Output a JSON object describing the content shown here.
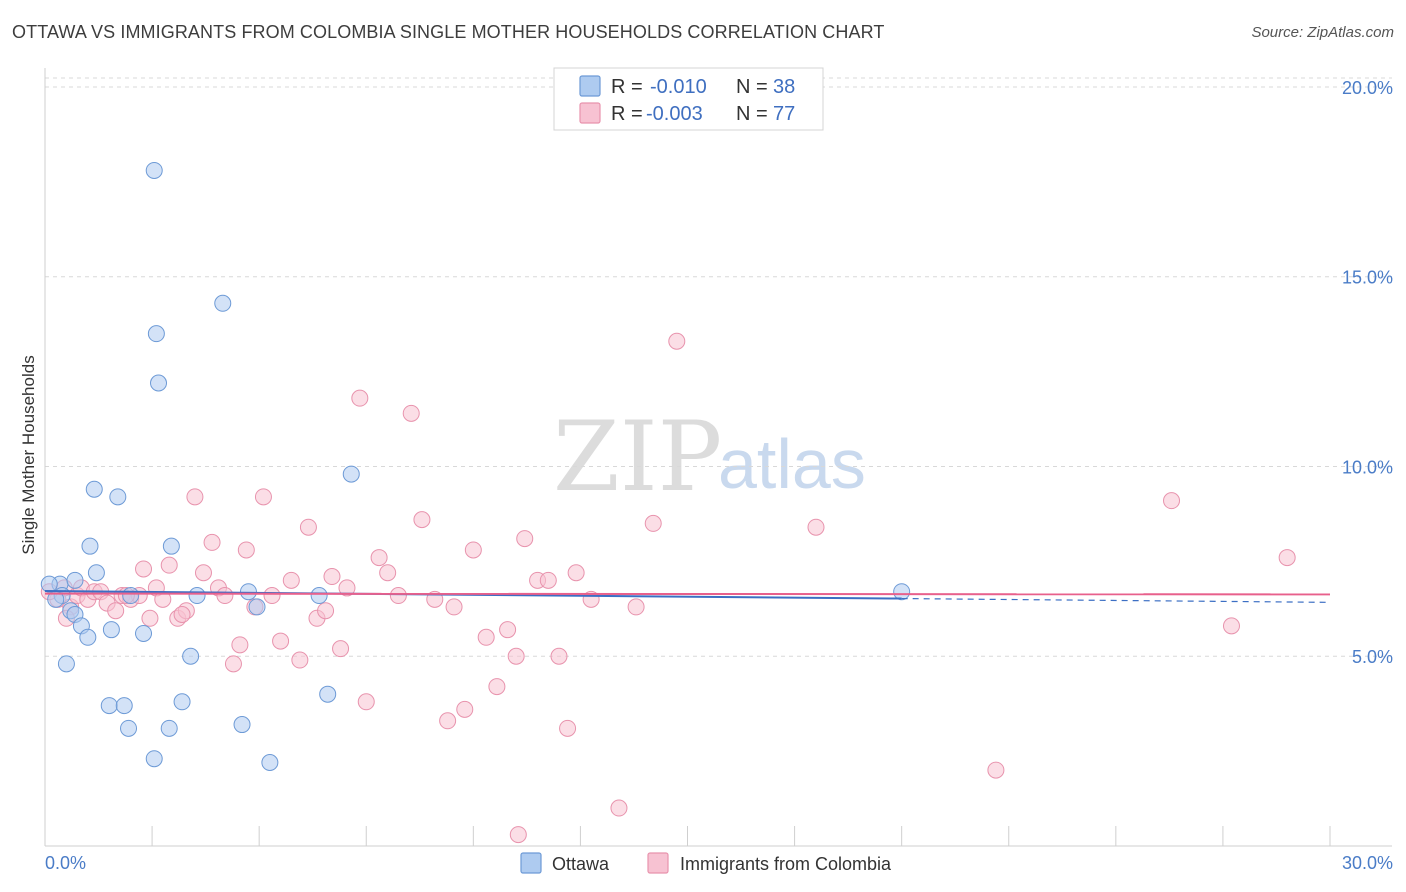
{
  "title": "OTTAWA VS IMMIGRANTS FROM COLOMBIA SINGLE MOTHER HOUSEHOLDS CORRELATION CHART",
  "source": "Source: ZipAtlas.com",
  "watermark": {
    "zip": "ZIP",
    "atlas": "atlas"
  },
  "colors": {
    "ottawa_fill": "#aecbf0",
    "ottawa_stroke": "#6d9ad6",
    "ottawa_line": "#3c6fc4",
    "colombia_fill": "#f7c2d2",
    "colombia_stroke": "#e893ad",
    "colombia_line": "#e8608c",
    "grid": "#d8d8d8",
    "tick_text": "#4a7cc7"
  },
  "legend": {
    "r_label": "R =",
    "n_label": "N =",
    "ottawa": {
      "r": "-0.010",
      "n": "38"
    },
    "colombia": {
      "r": "-0.003",
      "n": "77"
    }
  },
  "bottom_legend": {
    "ottawa": "Ottawa",
    "colombia": "Immigrants from Colombia"
  },
  "chart_data": {
    "type": "scatter",
    "title": "OTTAWA VS IMMIGRANTS FROM COLOMBIA SINGLE MOTHER HOUSEHOLDS CORRELATION CHART",
    "xlabel": "",
    "ylabel": "Single Mother Households",
    "xlim": [
      0,
      30
    ],
    "ylim": [
      0,
      20.5
    ],
    "x_tick_labels": [
      "0.0%",
      "30.0%"
    ],
    "y_ticks": [
      5,
      10,
      15,
      20
    ],
    "y_tick_labels": [
      "5.0%",
      "10.0%",
      "15.0%",
      "20.0%"
    ],
    "grid": true,
    "series": [
      {
        "name": "Ottawa",
        "trend": {
          "x": [
            0,
            20
          ],
          "y": [
            6.72,
            6.52
          ],
          "dashed_to_x": 30,
          "dashed_end_y": 6.42
        },
        "points": [
          [
            0.35,
            6.9
          ],
          [
            0.4,
            6.6
          ],
          [
            0.25,
            6.5
          ],
          [
            0.6,
            6.2
          ],
          [
            0.7,
            6.1
          ],
          [
            0.7,
            7.0
          ],
          [
            0.85,
            5.8
          ],
          [
            1.0,
            5.5
          ],
          [
            0.5,
            4.8
          ],
          [
            1.05,
            7.9
          ],
          [
            1.2,
            7.2
          ],
          [
            1.15,
            9.4
          ],
          [
            1.7,
            9.2
          ],
          [
            1.5,
            3.7
          ],
          [
            1.85,
            3.7
          ],
          [
            1.55,
            5.7
          ],
          [
            2.0,
            6.6
          ],
          [
            2.3,
            5.6
          ],
          [
            1.95,
            3.1
          ],
          [
            2.55,
            2.3
          ],
          [
            2.6,
            13.5
          ],
          [
            2.65,
            12.2
          ],
          [
            2.55,
            17.8
          ],
          [
            2.9,
            3.1
          ],
          [
            2.95,
            7.9
          ],
          [
            3.2,
            3.8
          ],
          [
            3.4,
            5.0
          ],
          [
            3.55,
            6.6
          ],
          [
            4.15,
            14.3
          ],
          [
            4.6,
            3.2
          ],
          [
            4.75,
            6.7
          ],
          [
            4.95,
            6.3
          ],
          [
            5.25,
            2.2
          ],
          [
            6.4,
            6.6
          ],
          [
            6.6,
            4.0
          ],
          [
            7.15,
            9.8
          ],
          [
            20.0,
            6.7
          ],
          [
            0.1,
            6.9
          ]
        ]
      },
      {
        "name": "Immigrants from Colombia",
        "trend": {
          "x": [
            0,
            30
          ],
          "y": [
            6.65,
            6.63
          ]
        },
        "points": [
          [
            0.3,
            6.5
          ],
          [
            0.45,
            6.8
          ],
          [
            0.6,
            6.3
          ],
          [
            0.5,
            6.0
          ],
          [
            0.75,
            6.6
          ],
          [
            0.85,
            6.8
          ],
          [
            1.0,
            6.5
          ],
          [
            1.15,
            6.7
          ],
          [
            1.3,
            6.7
          ],
          [
            1.45,
            6.4
          ],
          [
            1.65,
            6.2
          ],
          [
            1.8,
            6.6
          ],
          [
            2.0,
            6.5
          ],
          [
            2.2,
            6.6
          ],
          [
            2.3,
            7.3
          ],
          [
            2.45,
            6.0
          ],
          [
            2.6,
            6.8
          ],
          [
            2.75,
            6.5
          ],
          [
            2.9,
            7.4
          ],
          [
            3.1,
            6.0
          ],
          [
            3.3,
            6.2
          ],
          [
            3.5,
            9.2
          ],
          [
            3.7,
            7.2
          ],
          [
            3.9,
            8.0
          ],
          [
            4.05,
            6.8
          ],
          [
            4.2,
            6.6
          ],
          [
            4.4,
            4.8
          ],
          [
            4.55,
            5.3
          ],
          [
            4.7,
            7.8
          ],
          [
            4.9,
            6.3
          ],
          [
            5.1,
            9.2
          ],
          [
            5.3,
            6.6
          ],
          [
            5.5,
            5.4
          ],
          [
            5.75,
            7.0
          ],
          [
            5.95,
            4.9
          ],
          [
            6.15,
            8.4
          ],
          [
            6.35,
            6.0
          ],
          [
            6.55,
            6.2
          ],
          [
            6.7,
            7.1
          ],
          [
            6.9,
            5.2
          ],
          [
            7.05,
            6.8
          ],
          [
            7.35,
            11.8
          ],
          [
            7.5,
            3.8
          ],
          [
            7.8,
            7.6
          ],
          [
            8.0,
            7.2
          ],
          [
            8.25,
            6.6
          ],
          [
            8.55,
            11.4
          ],
          [
            8.8,
            8.6
          ],
          [
            9.1,
            6.5
          ],
          [
            9.4,
            3.3
          ],
          [
            9.55,
            6.3
          ],
          [
            9.8,
            3.6
          ],
          [
            10.0,
            7.8
          ],
          [
            10.3,
            5.5
          ],
          [
            10.55,
            4.2
          ],
          [
            10.8,
            5.7
          ],
          [
            11.0,
            5.0
          ],
          [
            11.2,
            8.1
          ],
          [
            11.5,
            7.0
          ],
          [
            11.75,
            7.0
          ],
          [
            12.0,
            5.0
          ],
          [
            12.2,
            3.1
          ],
          [
            12.4,
            7.2
          ],
          [
            12.75,
            6.5
          ],
          [
            13.4,
            1.0
          ],
          [
            13.8,
            6.3
          ],
          [
            14.2,
            8.5
          ],
          [
            14.75,
            13.3
          ],
          [
            18.0,
            8.4
          ],
          [
            22.2,
            2.0
          ],
          [
            26.3,
            9.1
          ],
          [
            29.0,
            7.6
          ],
          [
            27.7,
            5.8
          ],
          [
            11.05,
            0.3
          ],
          [
            1.9,
            6.6
          ],
          [
            0.1,
            6.7
          ],
          [
            3.2,
            6.1
          ]
        ]
      }
    ]
  }
}
